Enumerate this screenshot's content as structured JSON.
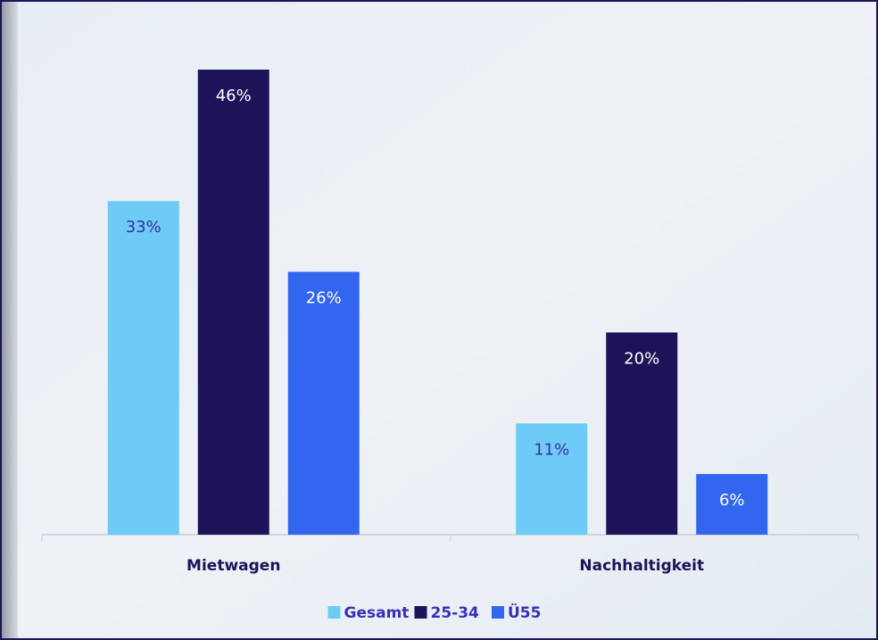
{
  "chart_data": {
    "type": "bar",
    "categories": [
      "Mietwagen",
      "Nachhaltigkeit"
    ],
    "series": [
      {
        "name": "Gesamt",
        "color": "#6ecbf5",
        "values": [
          33,
          11
        ],
        "value_labels": [
          "33%",
          "11%"
        ]
      },
      {
        "name": "25-34",
        "color": "#1e1358",
        "values": [
          46,
          20
        ],
        "value_labels": [
          "46%",
          "20%"
        ]
      },
      {
        "name": "Ü55",
        "color": "#3366ee",
        "values": [
          26,
          6
        ],
        "value_labels": [
          "26%",
          "6%"
        ]
      }
    ]
  }
}
